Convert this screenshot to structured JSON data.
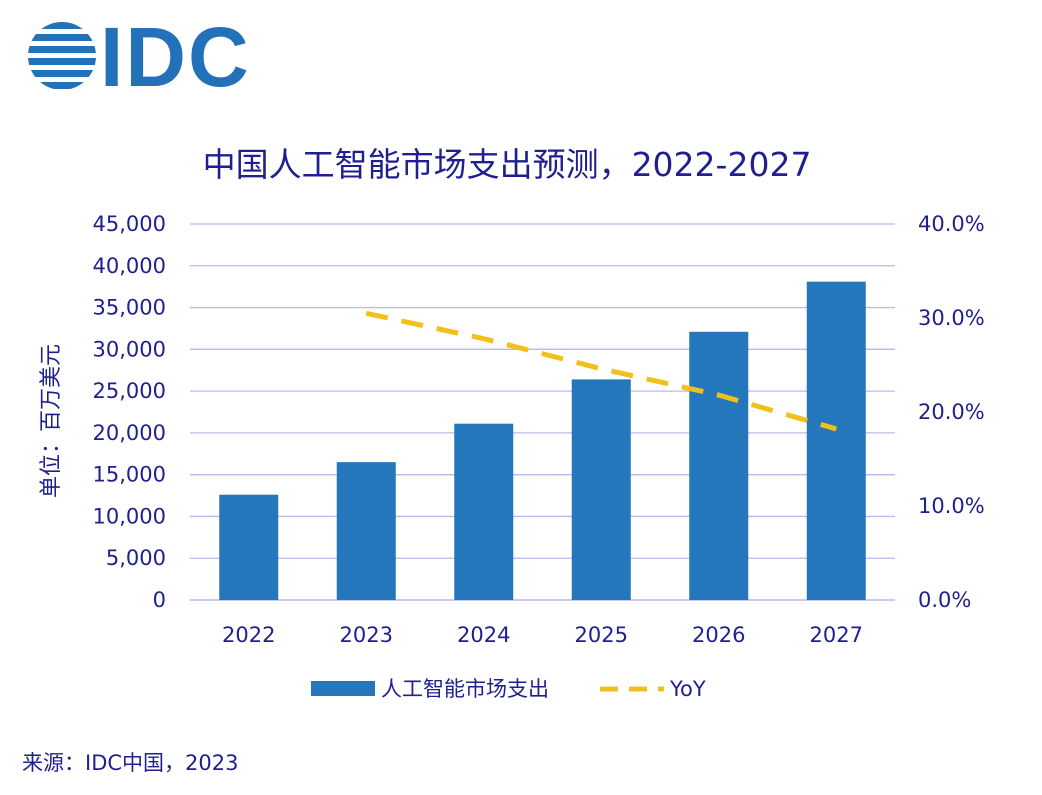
{
  "logo": {
    "text": "IDC",
    "color": "#2371b8"
  },
  "colors": {
    "bar": "#2377ba",
    "line": "#f2c01a",
    "text": "#1f1f8f",
    "grid": "#b9b9ee"
  },
  "chart_data": {
    "type": "bar",
    "title": "中国人工智能市场支出预测，2022-2027",
    "categories": [
      "2022",
      "2023",
      "2024",
      "2025",
      "2026",
      "2027"
    ],
    "series": [
      {
        "name": "人工智能市场支出",
        "type": "bar",
        "axis": "left",
        "values": [
          12600,
          16500,
          21100,
          26400,
          32100,
          38100
        ]
      },
      {
        "name": "YoY",
        "type": "line",
        "style": "dashed",
        "axis": "right",
        "values": [
          null,
          30.5,
          27.8,
          24.6,
          21.8,
          18.2
        ]
      }
    ],
    "ylabel": "单位：百万美元",
    "ylim": [
      0,
      45000
    ],
    "yticks": [
      "45,000",
      "40,000",
      "35,000",
      "30,000",
      "25,000",
      "20,000",
      "15,000",
      "10,000",
      "5,000",
      "0"
    ],
    "y2lim": [
      0,
      40
    ],
    "y2ticks": [
      "40.0%",
      "30.0%",
      "20.0%",
      "10.0%",
      "0.0%"
    ],
    "legend_position": "bottom",
    "grid": true
  },
  "source": "来源：IDC中国，2023"
}
